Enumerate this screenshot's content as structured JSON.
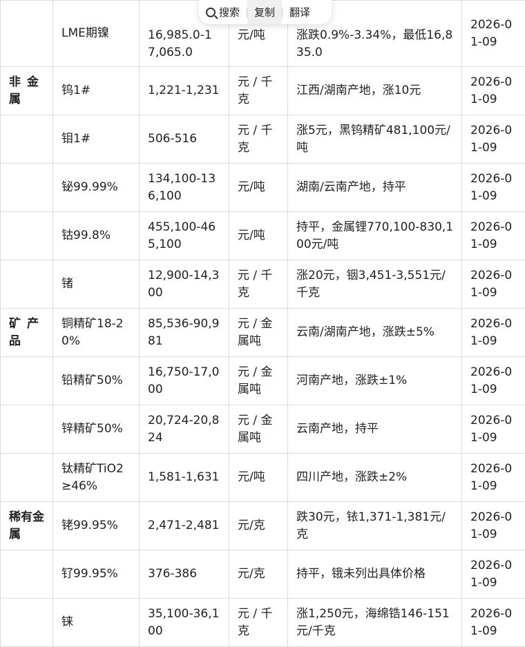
{
  "popup": {
    "search": "搜索",
    "copy": "复制",
    "translate": "翻译",
    "search_icon": "magnifier-icon"
  },
  "rows": [
    {
      "category": "",
      "name": "LME期镍",
      "price": "16,985.0-17,065.0",
      "unit": "元/吨",
      "note": "涨跌0.9%-3.34%，最低16,835.0",
      "date": "2026-01-09"
    },
    {
      "category": "非金属",
      "name": "钨1#",
      "price": "1,221-1,231",
      "unit": "元 / 千克",
      "note": "江西/湖南产地，涨10元",
      "date": "2026-01-09"
    },
    {
      "category": "",
      "name": "钼1#",
      "price": "506-516",
      "unit": "元 / 千克",
      "note": "涨5元，黑钨精矿481,100元/吨",
      "date": "2026-01-09"
    },
    {
      "category": "",
      "name": "铋99.99%",
      "price": "134,100-136,100",
      "unit": "元/吨",
      "note": "湖南/云南产地，持平",
      "date": "2026-01-09"
    },
    {
      "category": "",
      "name": "钴99.8%",
      "price": "455,100-465,100",
      "unit": "元/吨",
      "note": "持平，金属锂770,100-830,100元/吨",
      "date": "2026-01-09"
    },
    {
      "category": "",
      "name": "锗",
      "price": "12,900-14,300",
      "unit": "元 / 千克",
      "note": "涨20元，铟3,451-3,551元/千克",
      "date": "2026-01-09"
    },
    {
      "category": "矿产品",
      "name": "铜精矿18-20%",
      "price": "85,536-90,981",
      "unit": "元 / 金属吨",
      "note": "云南/湖南产地，涨跌±5%",
      "date": "2026-01-09"
    },
    {
      "category": "",
      "name": "铅精矿50%",
      "price": "16,750-17,000",
      "unit": "元 / 金属吨",
      "note": "河南产地，涨跌±1%",
      "date": "2026-01-09"
    },
    {
      "category": "",
      "name": "锌精矿50%",
      "price": "20,724-20,824",
      "unit": "元 / 金属吨",
      "note": "云南产地，持平",
      "date": "2026-01-09"
    },
    {
      "category": "",
      "name": "钛精矿TiO2≥46%",
      "price": "1,581-1,631",
      "unit": "元/吨",
      "note": "四川产地，涨跌±2%",
      "date": "2026-01-09"
    },
    {
      "category": "稀有金属",
      "name": "铑99.95%",
      "price": "2,471-2,481",
      "unit": "元/克",
      "note": "跌30元，铱1,371-1,381元/克",
      "date": "2026-01-09"
    },
    {
      "category": "",
      "name": "钌99.95%",
      "price": "376-386",
      "unit": "元/克",
      "note": "持平，锇未列出具体价格",
      "date": "2026-01-09"
    },
    {
      "category": "",
      "name": "铼",
      "price": "35,100-36,100",
      "unit": "元 / 千克",
      "note": "涨1,250元，海绵锆146-151元/千克",
      "date": "2026-01-09"
    }
  ]
}
